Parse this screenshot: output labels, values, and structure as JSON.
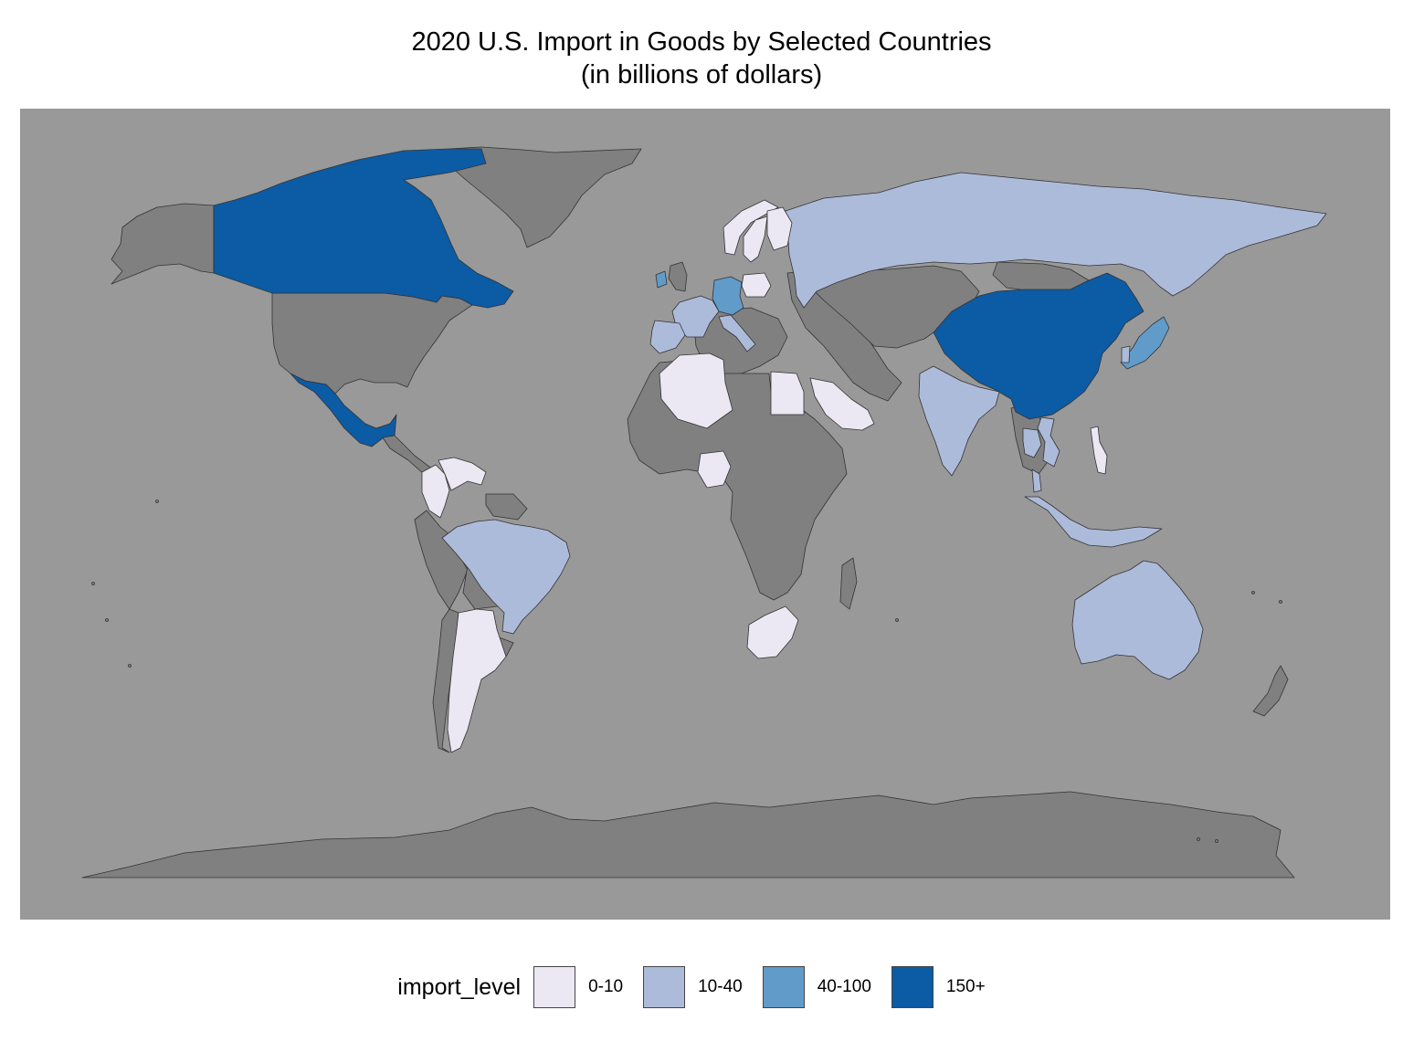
{
  "chart_data": {
    "type": "choropleth",
    "title": "2020 U.S. Import in Goods by Selected Countries",
    "subtitle": "(in billions of dollars)",
    "legend": {
      "title": "import_level",
      "placement": "bottom",
      "levels": [
        {
          "label": "0-10",
          "color": "#ebe8f4"
        },
        {
          "label": "10-40",
          "color": "#adbbdb"
        },
        {
          "label": "40-100",
          "color": "#619bc9"
        },
        {
          "label": "150+",
          "color": "#0c5ba5"
        }
      ]
    },
    "background_color": "#999999",
    "no_data_color": "#808080",
    "regions": [
      {
        "name": "Canada",
        "level": "150+"
      },
      {
        "name": "Mexico",
        "level": "150+"
      },
      {
        "name": "China",
        "level": "150+"
      },
      {
        "name": "Germany",
        "level": "40-100"
      },
      {
        "name": "Japan",
        "level": "40-100"
      },
      {
        "name": "Ireland",
        "level": "40-100"
      },
      {
        "name": "France",
        "level": "10-40"
      },
      {
        "name": "Spain",
        "level": "10-40"
      },
      {
        "name": "Italy",
        "level": "10-40"
      },
      {
        "name": "Russia",
        "level": "10-40"
      },
      {
        "name": "India",
        "level": "10-40"
      },
      {
        "name": "Brazil",
        "level": "10-40"
      },
      {
        "name": "Australia",
        "level": "10-40"
      },
      {
        "name": "Vietnam",
        "level": "10-40"
      },
      {
        "name": "Thailand",
        "level": "10-40"
      },
      {
        "name": "Malaysia",
        "level": "10-40"
      },
      {
        "name": "Indonesia",
        "level": "10-40"
      },
      {
        "name": "South Korea",
        "level": "10-40"
      },
      {
        "name": "Norway",
        "level": "0-10"
      },
      {
        "name": "Sweden",
        "level": "0-10"
      },
      {
        "name": "Finland",
        "level": "0-10"
      },
      {
        "name": "Poland",
        "level": "0-10"
      },
      {
        "name": "Algeria",
        "level": "0-10"
      },
      {
        "name": "Egypt",
        "level": "0-10"
      },
      {
        "name": "Saudi Arabia",
        "level": "0-10"
      },
      {
        "name": "Nigeria",
        "level": "0-10"
      },
      {
        "name": "South Africa",
        "level": "0-10"
      },
      {
        "name": "Colombia",
        "level": "0-10"
      },
      {
        "name": "Venezuela",
        "level": "0-10"
      },
      {
        "name": "Argentina",
        "level": "0-10"
      },
      {
        "name": "Philippines",
        "level": "0-10"
      }
    ]
  }
}
